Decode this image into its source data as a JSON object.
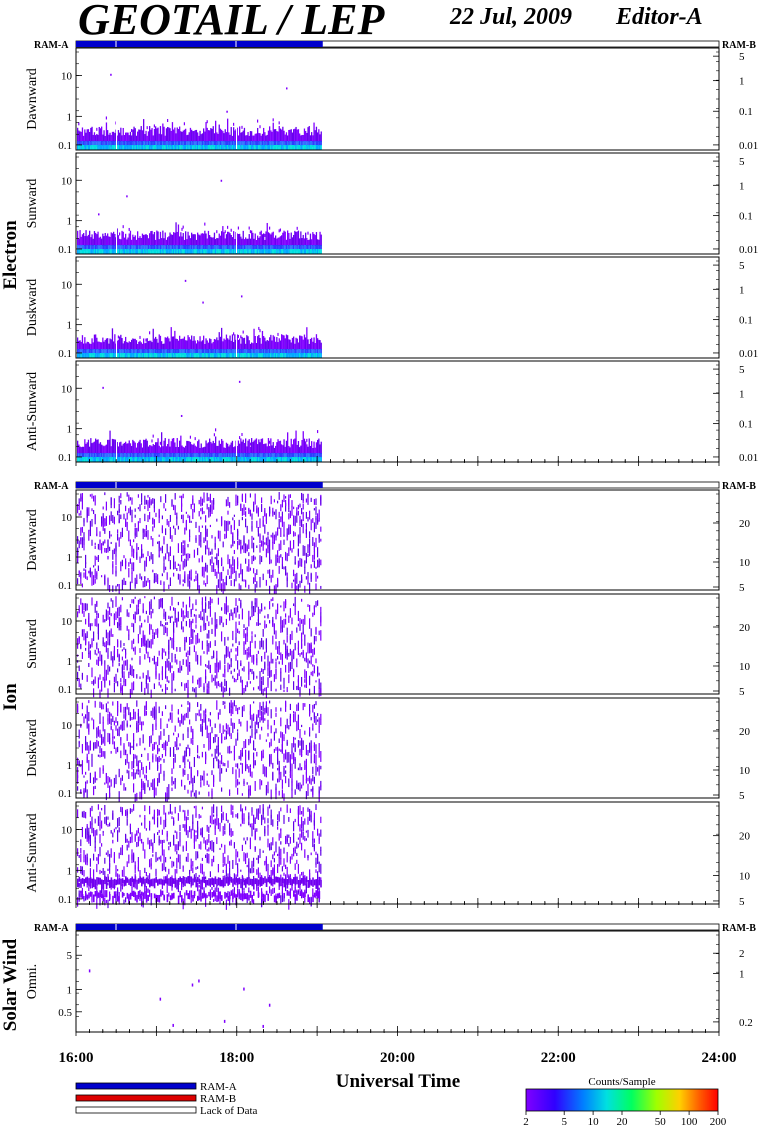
{
  "header": {
    "title": "GEOTAIL / LEP",
    "date": "22 Jul, 2009",
    "editor": "Editor-A"
  },
  "chart_data": {
    "type": "heatmap",
    "xlabel": "Universal Time",
    "x_tick_labels": [
      "16:00",
      "18:00",
      "20:00",
      "22:00",
      "24:00"
    ],
    "xlim_hours": [
      16,
      24
    ],
    "data_end_hour": 19.07,
    "ram_bar_labels": {
      "left": "RAM-A",
      "right": "RAM-B"
    },
    "legend": {
      "items": [
        {
          "label": "RAM-A",
          "color": "#0000cc"
        },
        {
          "label": "RAM-B",
          "color": "#dd0000"
        },
        {
          "label": "Lack of Data",
          "color": "#ffffff"
        }
      ]
    },
    "colorbar": {
      "title": "Counts/Sample",
      "tick_labels": [
        "2",
        "5",
        "10",
        "20",
        "50",
        "100",
        "200"
      ],
      "range": [
        2,
        200
      ],
      "scale": "log"
    },
    "groups": [
      {
        "name": "Electron",
        "panels": [
          {
            "label": "Dawnward",
            "left_ticks": [
              "10",
              "1",
              "0.1"
            ],
            "right_ticks": [
              "5",
              "1",
              "0.1",
              "0.01"
            ]
          },
          {
            "label": "Sunward",
            "left_ticks": [
              "10",
              "1",
              "0.1"
            ],
            "right_ticks": [
              "5",
              "1",
              "0.1",
              "0.01"
            ]
          },
          {
            "label": "Duskward",
            "left_ticks": [
              "10",
              "1",
              "0.1"
            ],
            "right_ticks": [
              "5",
              "1",
              "0.1",
              "0.01"
            ]
          },
          {
            "label": "Anti-Sunward",
            "left_ticks": [
              "10",
              "1",
              "0.1"
            ],
            "right_ticks": [
              "5",
              "1",
              "0.1",
              "0.01"
            ]
          }
        ]
      },
      {
        "name": "Ion",
        "panels": [
          {
            "label": "Dawnward",
            "left_ticks": [
              "10",
              "1",
              "0.1"
            ],
            "right_ticks": [
              "20",
              "10",
              "5"
            ]
          },
          {
            "label": "Sunward",
            "left_ticks": [
              "10",
              "1",
              "0.1"
            ],
            "right_ticks": [
              "20",
              "10",
              "5"
            ]
          },
          {
            "label": "Duskward",
            "left_ticks": [
              "10",
              "1",
              "0.1"
            ],
            "right_ticks": [
              "20",
              "10",
              "5"
            ]
          },
          {
            "label": "Anti-Sunward",
            "left_ticks": [
              "10",
              "1",
              "0.1"
            ],
            "right_ticks": [
              "20",
              "10",
              "5"
            ]
          }
        ]
      },
      {
        "name": "Solar Wind",
        "panels": [
          {
            "label": "Omni.",
            "left_ticks": [
              "5",
              "1",
              "0.5"
            ],
            "right_ticks": [
              "2",
              "1",
              "0.2"
            ]
          }
        ]
      }
    ]
  }
}
